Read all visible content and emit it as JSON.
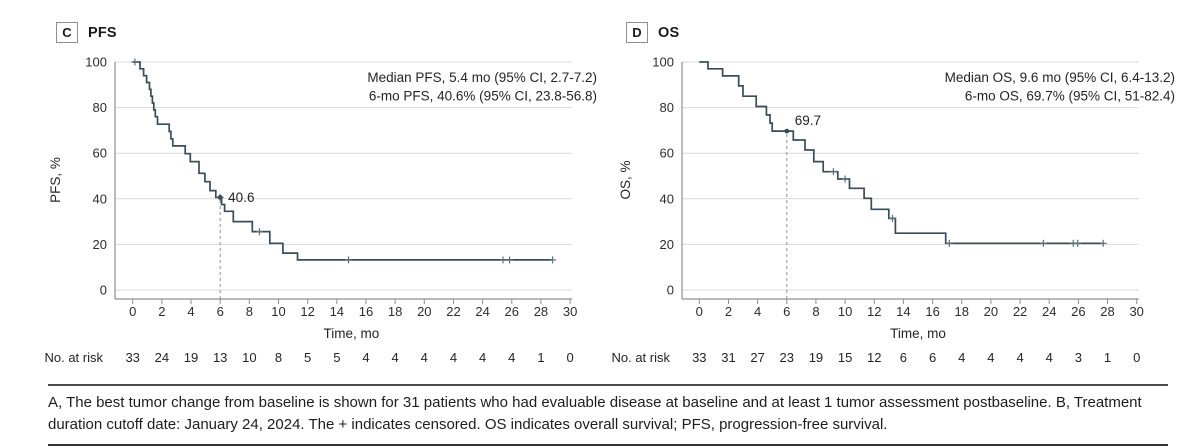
{
  "figure": {
    "caption": "A, The best tumor change from baseline is shown for 31 patients who had evaluable disease at baseline and at least 1 tumor assessment postbaseline. B, Treatment duration cutoff date: January 24, 2024. The + indicates censored. OS indicates overall survival; PFS, progression-free survival."
  },
  "colors": {
    "curve": "#3a4d56",
    "grid": "#d9d9d9",
    "axis": "#8f8f8f",
    "dashed": "#909090",
    "censor": "#5f7078",
    "text": "#242424",
    "tick_text": "#2e2e2e"
  },
  "chart_data": [
    {
      "type": "line",
      "panel_label": "C",
      "panel_title": "PFS",
      "xlabel": "Time, mo",
      "ylabel": "PFS, %",
      "xlim": [
        0,
        30
      ],
      "ylim": [
        0,
        100
      ],
      "xticks": [
        0,
        2,
        4,
        6,
        8,
        10,
        12,
        14,
        16,
        18,
        20,
        22,
        24,
        26,
        28,
        30
      ],
      "yticks": [
        0,
        20,
        40,
        60,
        80,
        100
      ],
      "grid": "horizontal",
      "annotation_line1": "Median PFS, 5.4 mo (95% CI, 2.7-7.2)",
      "annotation_line2": "6-mo PFS, 40.6% (95% CI, 23.8-56.8)",
      "reference": {
        "time": 6,
        "value": 40.6,
        "label": "40.6"
      },
      "series": [
        {
          "name": "PFS",
          "start": [
            0,
            100
          ],
          "end_time": 28.8,
          "steps": [
            [
              0.5,
              97
            ],
            [
              0.75,
              94
            ],
            [
              0.95,
              91
            ],
            [
              1.15,
              88
            ],
            [
              1.25,
              85
            ],
            [
              1.35,
              82
            ],
            [
              1.45,
              79
            ],
            [
              1.55,
              76
            ],
            [
              1.7,
              72.7
            ],
            [
              2.5,
              69.5
            ],
            [
              2.62,
              66.3
            ],
            [
              2.75,
              63.2
            ],
            [
              3.6,
              59.8
            ],
            [
              3.95,
              56.3
            ],
            [
              4.55,
              51.2
            ],
            [
              4.95,
              47.5
            ],
            [
              5.3,
              43.6
            ],
            [
              5.7,
              40.6
            ],
            [
              6.1,
              37.5
            ],
            [
              6.3,
              34.5
            ],
            [
              6.9,
              30
            ],
            [
              8.2,
              25.6
            ],
            [
              9.4,
              20.5
            ],
            [
              10.3,
              16.2
            ],
            [
              11.3,
              13.2
            ]
          ]
        }
      ],
      "censors": [
        [
          0.15,
          100
        ],
        [
          6.0,
          40.6
        ],
        [
          8.7,
          25.6
        ],
        [
          14.8,
          13.2
        ],
        [
          25.4,
          13.2
        ],
        [
          25.85,
          13.2
        ],
        [
          28.8,
          13.2
        ]
      ],
      "risk_label": "No. at risk",
      "risk": [
        33,
        24,
        19,
        13,
        10,
        8,
        5,
        5,
        4,
        4,
        4,
        4,
        4,
        4,
        1,
        0
      ]
    },
    {
      "type": "line",
      "panel_label": "D",
      "panel_title": "OS",
      "xlabel": "Time, mo",
      "ylabel": "OS, %",
      "xlim": [
        0,
        30
      ],
      "ylim": [
        0,
        100
      ],
      "xticks": [
        0,
        2,
        4,
        6,
        8,
        10,
        12,
        14,
        16,
        18,
        20,
        22,
        24,
        26,
        28,
        30
      ],
      "yticks": [
        0,
        20,
        40,
        60,
        80,
        100
      ],
      "grid": "horizontal",
      "annotation_line1": "Median OS, 9.6 mo (95% CI, 6.4-13.2)",
      "annotation_line2": "6-mo OS, 69.7% (95% CI, 51-82.4)",
      "reference": {
        "time": 6,
        "value": 69.7,
        "label": "69.7"
      },
      "series": [
        {
          "name": "OS",
          "start": [
            0,
            100
          ],
          "end_time": 27.7,
          "steps": [
            [
              0.6,
              97
            ],
            [
              1.6,
              93.9
            ],
            [
              2.7,
              89.5
            ],
            [
              3.0,
              85
            ],
            [
              3.9,
              80.5
            ],
            [
              4.6,
              76.8
            ],
            [
              4.85,
              73.2
            ],
            [
              5.0,
              69.7
            ],
            [
              6.45,
              65.8
            ],
            [
              7.25,
              61.4
            ],
            [
              7.85,
              56.3
            ],
            [
              8.5,
              51.9
            ],
            [
              9.5,
              48.7
            ],
            [
              10.3,
              44.6
            ],
            [
              11.3,
              40.2
            ],
            [
              11.8,
              35.4
            ],
            [
              13.0,
              31.4
            ],
            [
              13.45,
              24.9
            ],
            [
              16.9,
              20.5
            ]
          ]
        }
      ],
      "censors": [
        [
          9.2,
          51.9
        ],
        [
          10.0,
          48.7
        ],
        [
          13.25,
          31.4
        ],
        [
          17.15,
          20.5
        ],
        [
          23.6,
          20.5
        ],
        [
          25.65,
          20.5
        ],
        [
          25.95,
          20.5
        ],
        [
          27.7,
          20.5
        ]
      ],
      "risk_label": "No. at risk",
      "risk": [
        33,
        31,
        27,
        23,
        19,
        15,
        12,
        6,
        6,
        4,
        4,
        4,
        4,
        3,
        1,
        0
      ]
    }
  ]
}
